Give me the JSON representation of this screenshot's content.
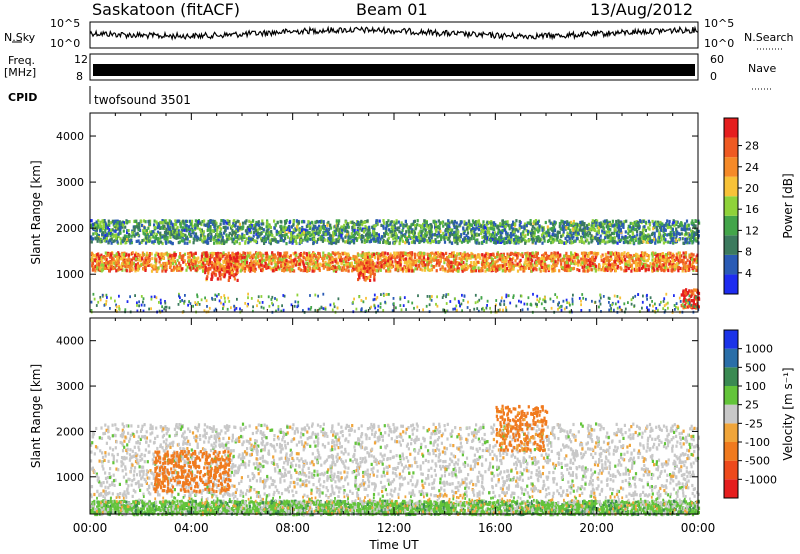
{
  "header": {
    "station": "Saskatoon  (fitACF)",
    "beam": "Beam 01",
    "date": "13/Aug/2012"
  },
  "strips": {
    "nsky_label": "N.Sky",
    "nsky_ticks": [
      "10^5",
      "10^0"
    ],
    "nsearch_label": "N.Search",
    "nsearch_ticks": [
      "10^5",
      "10^0"
    ],
    "freq_label": "Freq.",
    "freq_unit": "[MHz]",
    "freq_ticks": [
      "12",
      "8"
    ],
    "nave_label": "Nave",
    "nave_ticks": [
      "60",
      "0"
    ],
    "cpid_label": "CPID",
    "cpid_value": "twofsound 3501"
  },
  "chart_data": [
    {
      "type": "heatmap",
      "panel": "power",
      "xlabel": "Time UT",
      "ylabel": "Slant Range [km]",
      "x_ticks": [
        "00:00",
        "04:00",
        "08:00",
        "12:00",
        "16:00",
        "20:00",
        "00:00"
      ],
      "xlim_hours": [
        0,
        24
      ],
      "ylim": [
        180,
        4500
      ],
      "y_ticks": [
        1000,
        2000,
        3000,
        4000
      ],
      "colorbar": {
        "label": "Power [dB]",
        "ticks": [
          "4",
          "8",
          "12",
          "16",
          "20",
          "24",
          "28"
        ],
        "colors": [
          "#1e2cf0",
          "#2a5bb5",
          "#3c7a5e",
          "#43a54a",
          "#8fd23a",
          "#f7c238",
          "#f58a28",
          "#ef5a22",
          "#e51e1e"
        ],
        "range": [
          0,
          30
        ]
      },
      "features": [
        {
          "desc": "main band",
          "t_start": 0,
          "t_end": 24,
          "range_km": [
            1100,
            1500
          ],
          "value": 22
        },
        {
          "desc": "upper band",
          "t_start": 0,
          "t_end": 24,
          "range_km": [
            1700,
            2200
          ],
          "value": 10
        },
        {
          "desc": "patch",
          "t_start": 4.5,
          "t_end": 5.8,
          "range_km": [
            900,
            1500
          ],
          "value": 26
        },
        {
          "desc": "patch",
          "t_start": 10.5,
          "t_end": 11.2,
          "range_km": [
            900,
            1300
          ],
          "value": 24
        },
        {
          "desc": "late patch",
          "t_start": 23.3,
          "t_end": 24,
          "range_km": [
            300,
            700
          ],
          "value": 28
        }
      ]
    },
    {
      "type": "heatmap",
      "panel": "velocity",
      "xlabel": "Time UT",
      "ylabel": "Slant Range [km]",
      "x_ticks": [
        "00:00",
        "04:00",
        "08:00",
        "12:00",
        "16:00",
        "20:00",
        "00:00"
      ],
      "xlim_hours": [
        0,
        24
      ],
      "ylim": [
        180,
        4500
      ],
      "y_ticks": [
        1000,
        2000,
        3000,
        4000
      ],
      "colorbar": {
        "label": "Velocity [m s⁻¹]",
        "ticks": [
          "1000",
          "500",
          "100",
          "25",
          "-25",
          "-100",
          "-500",
          "-1000"
        ],
        "colors": [
          "#1b33e8",
          "#2a6ea8",
          "#3a8a52",
          "#63c43a",
          "#c8c8c8",
          "#f0a53a",
          "#f07a1e",
          "#ee4a1c",
          "#e51e1e"
        ]
      },
      "features": [
        {
          "desc": "ground scatter band",
          "t_start": 0,
          "t_end": 24,
          "range_km": [
            600,
            2200
          ],
          "value": 0
        },
        {
          "desc": "negative velocity patch",
          "t_start": 2.5,
          "t_end": 5.5,
          "range_km": [
            700,
            1600
          ],
          "value": -300
        },
        {
          "desc": "negative velocity patch",
          "t_start": 16,
          "t_end": 18,
          "range_km": [
            1600,
            2600
          ],
          "value": -200
        },
        {
          "desc": "positive velocity strip",
          "t_start": 0,
          "t_end": 24,
          "range_km": [
            200,
            500
          ],
          "value": 60
        }
      ]
    }
  ],
  "colors": {
    "axes": "#000000",
    "strip_fill": "#000000"
  }
}
